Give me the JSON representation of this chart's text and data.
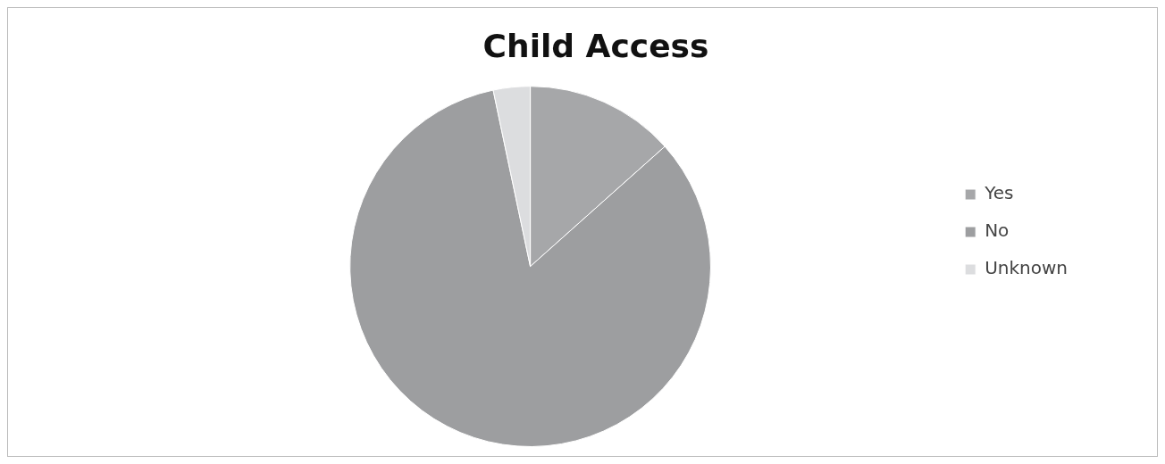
{
  "chart_data": {
    "type": "pie",
    "title": "Child Access",
    "categories": [
      "Yes",
      "No",
      "Unknown"
    ],
    "values": [
      13.4,
      83.3,
      3.3
    ],
    "colors": [
      "#a6a7a9",
      "#9d9ea0",
      "#dcdddf"
    ],
    "legend": "right"
  }
}
